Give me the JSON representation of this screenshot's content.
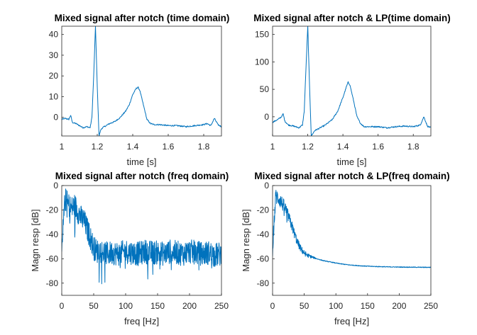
{
  "colors": {
    "trace": "#0072BD",
    "axis": "#262626"
  },
  "chart_data": [
    {
      "type": "line",
      "title": "Mixed signal after notch (time domain)",
      "xlabel": "time [s]",
      "ylabel": "",
      "xlim": [
        1,
        1.9
      ],
      "ylim": [
        -9,
        44
      ],
      "xticks": [
        1,
        1.2,
        1.4,
        1.6,
        1.8
      ],
      "xtick_labels": [
        "1",
        "1.2",
        "1.4",
        "1.6",
        "1.8"
      ],
      "yticks": [
        0,
        10,
        20,
        30,
        40
      ],
      "ytick_labels": [
        "0",
        "10",
        "20",
        "30",
        "40"
      ],
      "series": [
        {
          "x": [
            1.0,
            1.02,
            1.04,
            1.05,
            1.06,
            1.08,
            1.1,
            1.12,
            1.14,
            1.16,
            1.17,
            1.18,
            1.19,
            1.2,
            1.21,
            1.22,
            1.23,
            1.25,
            1.27,
            1.3,
            1.33,
            1.36,
            1.38,
            1.4,
            1.42,
            1.43,
            1.44,
            1.46,
            1.48,
            1.5,
            1.52,
            1.55,
            1.6,
            1.65,
            1.7,
            1.75,
            1.8,
            1.82,
            1.84,
            1.86,
            1.88,
            1.9
          ],
          "y": [
            -1,
            -0.5,
            -1,
            1,
            -2.5,
            -3,
            -4,
            -5,
            -4.5,
            -5,
            0,
            20,
            44,
            15,
            -9,
            -6,
            -5,
            -4,
            -3,
            -2,
            0,
            3,
            6,
            11,
            14,
            14.5,
            13,
            6,
            -1,
            -3,
            -3.5,
            -3.5,
            -4,
            -4,
            -4.5,
            -4,
            -3.5,
            -3,
            -4,
            -0.5,
            -3.5,
            -4.5
          ]
        }
      ]
    },
    {
      "type": "line",
      "title": "Mixed signal after notch & LP(time domain)",
      "xlabel": "time [s]",
      "ylabel": "",
      "xlim": [
        1,
        1.9
      ],
      "ylim": [
        -35,
        165
      ],
      "xticks": [
        1,
        1.2,
        1.4,
        1.6,
        1.8
      ],
      "xtick_labels": [
        "1",
        "1.2",
        "1.4",
        "1.6",
        "1.8"
      ],
      "yticks": [
        0,
        50,
        100,
        150
      ],
      "ytick_labels": [
        "0",
        "50",
        "100",
        "150"
      ],
      "series": [
        {
          "x": [
            1.0,
            1.03,
            1.05,
            1.06,
            1.07,
            1.09,
            1.12,
            1.15,
            1.17,
            1.18,
            1.19,
            1.2,
            1.21,
            1.22,
            1.23,
            1.24,
            1.26,
            1.3,
            1.34,
            1.37,
            1.4,
            1.42,
            1.43,
            1.44,
            1.46,
            1.48,
            1.5,
            1.52,
            1.55,
            1.6,
            1.65,
            1.7,
            1.75,
            1.8,
            1.84,
            1.86,
            1.88,
            1.9
          ],
          "y": [
            -10,
            -5,
            0,
            5,
            -8,
            -15,
            -17,
            -20,
            -15,
            10,
            90,
            165,
            60,
            -35,
            -30,
            -25,
            -22,
            -15,
            -5,
            10,
            35,
            55,
            63,
            58,
            30,
            0,
            -12,
            -18,
            -18,
            -18,
            -20,
            -18,
            -17,
            -18,
            -15,
            0,
            -17,
            -20
          ]
        }
      ]
    },
    {
      "type": "line",
      "title": "Mixed signal after notch (freq domain)",
      "xlabel": "freq [Hz]",
      "ylabel": "Magn resp [dB]",
      "xlim": [
        0,
        250
      ],
      "ylim": [
        -90,
        0
      ],
      "xticks": [
        0,
        50,
        100,
        150,
        200,
        250
      ],
      "xtick_labels": [
        "0",
        "50",
        "100",
        "150",
        "200",
        "250"
      ],
      "yticks": [
        -80,
        -60,
        -40,
        -20,
        0
      ],
      "ytick_labels": [
        "-80",
        "-60",
        "-40",
        "-20",
        "0"
      ],
      "series": [
        {
          "x": [
            0,
            5,
            10,
            15,
            20,
            25,
            30,
            35,
            40,
            45,
            50,
            55,
            60,
            70,
            80,
            90,
            100,
            110,
            120,
            130,
            140,
            150,
            160,
            170,
            180,
            190,
            200,
            210,
            220,
            230,
            240,
            250
          ],
          "y": [
            -55,
            -10,
            -14,
            -18,
            -15,
            -20,
            -25,
            -28,
            -35,
            -42,
            -50,
            -53,
            -52,
            -55,
            -54,
            -55,
            -53,
            -54,
            -55,
            -53,
            -54,
            -54,
            -55,
            -53,
            -54,
            -55,
            -53,
            -54,
            -55,
            -54,
            -56,
            -55
          ],
          "noise_amplitude_db": 10
        }
      ]
    },
    {
      "type": "line",
      "title": "Mixed signal after notch & LP(freq domain)",
      "xlabel": "freq [Hz]",
      "ylabel": "Magn resp [dB]",
      "xlim": [
        0,
        250
      ],
      "ylim": [
        -90,
        0
      ],
      "xticks": [
        0,
        50,
        100,
        150,
        200,
        250
      ],
      "xtick_labels": [
        "0",
        "50",
        "100",
        "150",
        "200",
        "250"
      ],
      "yticks": [
        -80,
        -60,
        -40,
        -20,
        0
      ],
      "ytick_labels": [
        "-80",
        "-60",
        "-40",
        "-20",
        "0"
      ],
      "series": [
        {
          "x": [
            0,
            5,
            10,
            15,
            20,
            25,
            30,
            35,
            40,
            45,
            50,
            55,
            60,
            70,
            80,
            90,
            100,
            110,
            120,
            140,
            160,
            180,
            200,
            220,
            240,
            250
          ],
          "y": [
            -50,
            -8,
            -10,
            -14,
            -18,
            -25,
            -32,
            -40,
            -47,
            -52,
            -55,
            -57,
            -58,
            -60,
            -61.5,
            -62.5,
            -63.5,
            -64.3,
            -65,
            -65.8,
            -66.3,
            -66.6,
            -66.8,
            -66.9,
            -67,
            -67
          ],
          "noise_amplitude_db": 7,
          "noise_fade_end_hz": 70
        }
      ]
    }
  ]
}
